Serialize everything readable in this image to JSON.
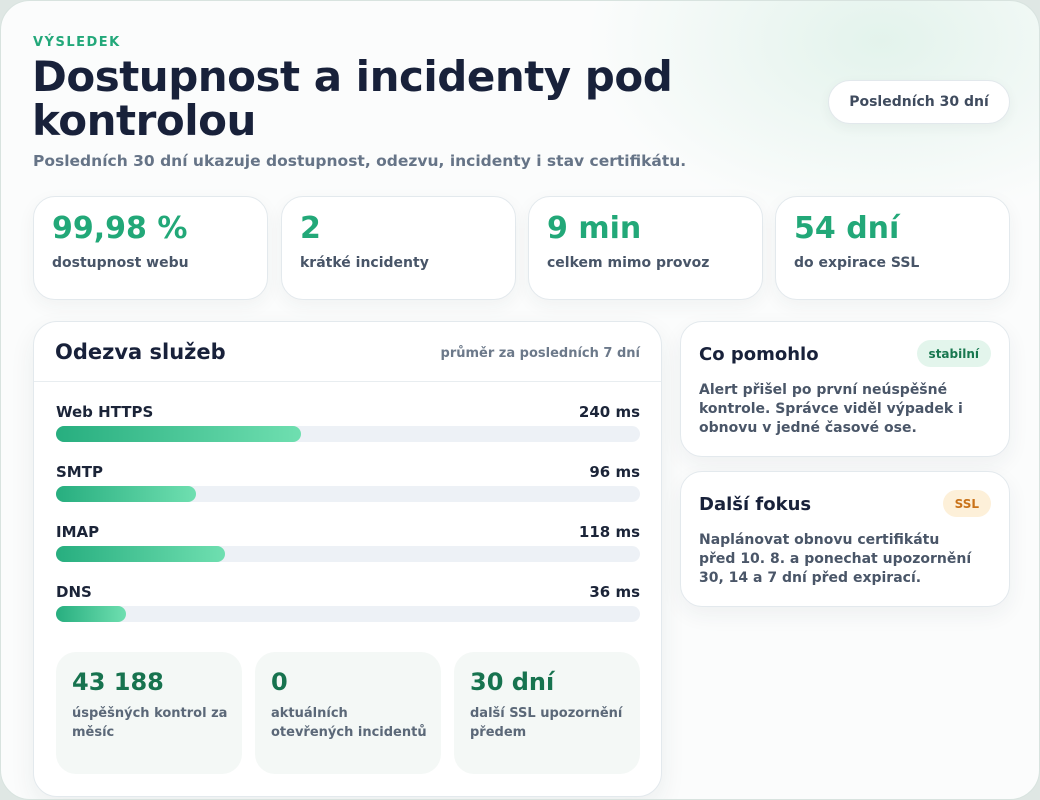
{
  "header": {
    "eyebrow": "VÝSLEDEK",
    "title": "Dostupnost a incidenty pod kontrolou",
    "subtitle": "Posledních 30 dní ukazuje dostupnost, odezvu, incidenty i stav certifikátu.",
    "range_button": "Posledních 30 dní"
  },
  "stats": [
    {
      "value": "99,98 %",
      "label": "dostupnost webu"
    },
    {
      "value": "2",
      "label": "krátké incidenty"
    },
    {
      "value": "9 min",
      "label": "celkem mimo provoz"
    },
    {
      "value": "54 dní",
      "label": "do expirace SSL"
    }
  ],
  "response": {
    "title": "Odezva služeb",
    "note": "průměr za posledních 7 dní",
    "services": [
      {
        "name": "Web HTTPS",
        "ms": "240 ms",
        "fill": 0.42
      },
      {
        "name": "SMTP",
        "ms": "96 ms",
        "fill": 0.24
      },
      {
        "name": "IMAP",
        "ms": "118 ms",
        "fill": 0.29
      },
      {
        "name": "DNS",
        "ms": "36 ms",
        "fill": 0.12
      }
    ],
    "summary": [
      {
        "value": "43 188",
        "label": "úspěšných kontrol za měsíc"
      },
      {
        "value": "0",
        "label": "aktuálních otevřených incidentů"
      },
      {
        "value": "30 dní",
        "label": "další SSL upozornění předem"
      }
    ]
  },
  "cards": [
    {
      "title": "Co pomohlo",
      "tag": "stabilní",
      "text": "Alert přišel po první neúspěšné kontrole. Správce viděl výpadek i obnovu v jedné časové ose."
    },
    {
      "title": "Další fokus",
      "tag": "SSL",
      "text": "Naplánovat obnovu certifikátu před 10. 8. a ponechat upozornění 30, 14 a 7 dní před expirací."
    }
  ],
  "colors": {
    "accent": "#22a878",
    "accent_dark": "#17734f",
    "tag_green_bg": "#e3f5ec",
    "tag_amber_bg": "#fdf0d9",
    "tag_amber_text": "#c9731a"
  }
}
